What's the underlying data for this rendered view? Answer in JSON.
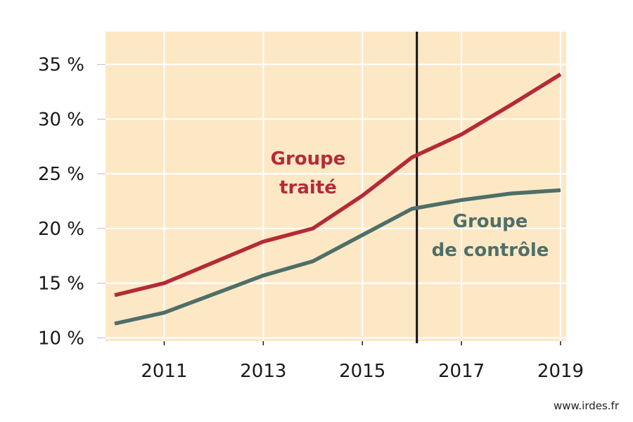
{
  "chart_data": {
    "type": "line",
    "x": [
      2010,
      2011,
      2012,
      2013,
      2014,
      2015,
      2016,
      2017,
      2018,
      2019
    ],
    "xticks": [
      2011,
      2013,
      2015,
      2017,
      2019
    ],
    "xtick_labels": [
      "2011",
      "2013",
      "2015",
      "2017",
      "2019"
    ],
    "yticks": [
      10,
      15,
      20,
      25,
      30,
      35
    ],
    "ytick_labels": [
      "10 %",
      "15 %",
      "20 %",
      "25 %",
      "30 %",
      "35 %"
    ],
    "xlim": [
      2009.9,
      2019.1
    ],
    "ylim": [
      9.7,
      38.0
    ],
    "grid": true,
    "background": "#fde8c6",
    "gridline_color": "#ffffff",
    "vertical_marker": 2016.1,
    "series": [
      {
        "name": "Groupe traité",
        "label_lines": [
          "Groupe",
          "traité"
        ],
        "color": "#b52a36",
        "values": [
          13.9,
          15.0,
          16.9,
          18.8,
          20.0,
          23.0,
          26.5,
          28.6,
          31.3,
          34.1
        ]
      },
      {
        "name": "Groupe de contrôle",
        "label_lines": [
          "Groupe",
          "de contrôle"
        ],
        "color": "#4e6f68",
        "values": [
          11.3,
          12.3,
          14.0,
          15.7,
          17.0,
          19.4,
          21.8,
          22.6,
          23.2,
          23.5
        ]
      }
    ],
    "source": "www.irdes.fr"
  }
}
